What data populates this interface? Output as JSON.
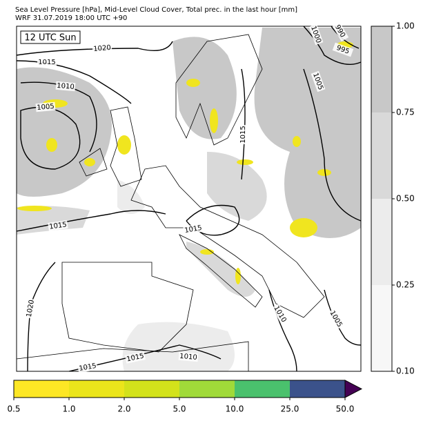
{
  "header": {
    "line1": "Sea Level Pressure [hPa], Mid-Level Cloud Cover, Total prec. in the last hour [mm]",
    "line2": "WRF 31.07.2019 18:00 UTC +90"
  },
  "map": {
    "time_label": "12 UTC Sun",
    "isobar_labels": [
      1020,
      1015,
      1010,
      1005,
      1000,
      995,
      990,
      1005,
      1015,
      1015,
      1015,
      1020,
      1010,
      1005,
      1015,
      1010,
      1015
    ]
  },
  "cloud_colorbar": {
    "ticks": [
      {
        "value": 0.1,
        "label": "0.10"
      },
      {
        "value": 0.25,
        "label": "0.25"
      },
      {
        "value": 0.5,
        "label": "0.50"
      },
      {
        "value": 0.75,
        "label": "0.75"
      },
      {
        "value": 1.0,
        "label": "1.00"
      }
    ],
    "colors": [
      "#f7f7f7",
      "#ececec",
      "#d9d9d9",
      "#c8c8c8"
    ]
  },
  "precip_colorbar": {
    "ticks": [
      0.5,
      {
        "value": 1.0,
        "label": "1.0"
      },
      {
        "value": 2.0,
        "label": "2.0"
      },
      {
        "value": 5.0,
        "label": "5.0"
      },
      {
        "value": 10.0,
        "label": "10.0"
      },
      {
        "value": 25.0,
        "label": "25.0"
      },
      {
        "value": 50.0,
        "label": "50.0"
      }
    ],
    "colors": [
      "#fde725",
      "#ebe51b",
      "#d3e21b",
      "#a0da39",
      "#4ac16d",
      "#3b528b"
    ],
    "extend_color": "#440154"
  }
}
